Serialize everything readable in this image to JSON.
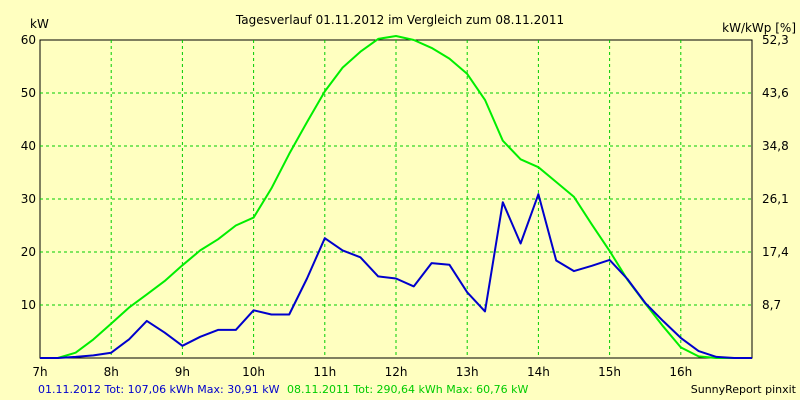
{
  "chart_data": {
    "type": "line",
    "title": "Tagesverlauf 01.11.2012 im Vergleich zum 08.11.2011",
    "ylabel_left": "kW",
    "ylabel_right": "kW/kWp [%]",
    "ylim": [
      0,
      60
    ],
    "grid": true,
    "x_ticks": [
      "7h",
      "8h",
      "9h",
      "10h",
      "11h",
      "12h",
      "13h",
      "14h",
      "15h",
      "16h"
    ],
    "y_ticks_left": [
      "10",
      "20",
      "30",
      "40",
      "50",
      "60"
    ],
    "y_ticks_right": [
      "8,7",
      "17,4",
      "26,1",
      "34,8",
      "43,6",
      "52,3"
    ],
    "series": [
      {
        "name": "01.11.2012",
        "color": "#0000cc",
        "points": [
          [
            7.0,
            0
          ],
          [
            7.25,
            0
          ],
          [
            7.5,
            0.2
          ],
          [
            7.75,
            0.5
          ],
          [
            8.0,
            1
          ],
          [
            8.25,
            3.5
          ],
          [
            8.5,
            7
          ],
          [
            8.75,
            4.8
          ],
          [
            9.0,
            2.3
          ],
          [
            9.25,
            4
          ],
          [
            9.5,
            5.3
          ],
          [
            9.75,
            5.3
          ],
          [
            10.0,
            9
          ],
          [
            10.25,
            8.2
          ],
          [
            10.5,
            8.2
          ],
          [
            10.75,
            15
          ],
          [
            11.0,
            22.6
          ],
          [
            11.25,
            20.3
          ],
          [
            11.5,
            19
          ],
          [
            11.75,
            15.4
          ],
          [
            12.0,
            15
          ],
          [
            12.25,
            13.5
          ],
          [
            12.5,
            17.9
          ],
          [
            12.75,
            17.6
          ],
          [
            13.0,
            12.4
          ],
          [
            13.25,
            8.8
          ],
          [
            13.5,
            29.4
          ],
          [
            13.75,
            21.6
          ],
          [
            14.0,
            30.9
          ],
          [
            14.25,
            18.4
          ],
          [
            14.5,
            16.4
          ],
          [
            14.75,
            17.4
          ],
          [
            15.0,
            18.5
          ],
          [
            15.25,
            14.9
          ],
          [
            15.5,
            10.4
          ],
          [
            15.75,
            7
          ],
          [
            16.0,
            3.8
          ],
          [
            16.25,
            1.3
          ],
          [
            16.5,
            0.2
          ],
          [
            16.75,
            0
          ],
          [
            17.0,
            0
          ]
        ]
      },
      {
        "name": "08.11.2011",
        "color": "#00ee00",
        "points": [
          [
            7.0,
            0
          ],
          [
            7.25,
            0
          ],
          [
            7.5,
            1
          ],
          [
            7.75,
            3.5
          ],
          [
            8.0,
            6.5
          ],
          [
            8.25,
            9.5
          ],
          [
            8.5,
            12
          ],
          [
            8.75,
            14.5
          ],
          [
            9.0,
            17.5
          ],
          [
            9.25,
            20.3
          ],
          [
            9.5,
            22.4
          ],
          [
            9.75,
            25
          ],
          [
            10.0,
            26.5
          ],
          [
            10.25,
            32
          ],
          [
            10.5,
            38.5
          ],
          [
            10.75,
            44.5
          ],
          [
            11.0,
            50.3
          ],
          [
            11.25,
            54.8
          ],
          [
            11.5,
            57.8
          ],
          [
            11.75,
            60.2
          ],
          [
            12.0,
            60.76
          ],
          [
            12.25,
            60
          ],
          [
            12.5,
            58.5
          ],
          [
            12.75,
            56.5
          ],
          [
            13.0,
            53.6
          ],
          [
            13.25,
            48.7
          ],
          [
            13.5,
            41
          ],
          [
            13.75,
            37.5
          ],
          [
            14.0,
            36
          ],
          [
            14.25,
            33.2
          ],
          [
            14.5,
            30.4
          ],
          [
            14.75,
            25.2
          ],
          [
            15.0,
            20.2
          ],
          [
            15.25,
            14.8
          ],
          [
            15.5,
            10.3
          ],
          [
            15.75,
            6
          ],
          [
            16.0,
            2
          ],
          [
            16.25,
            0.3
          ],
          [
            16.5,
            0
          ],
          [
            16.75,
            0
          ],
          [
            17.0,
            0
          ]
        ]
      }
    ]
  },
  "footer": {
    "series1_text": "01.11.2012 Tot: 107,06 kWh Max: 30,91 kW",
    "series1_color": "#0000cc",
    "series2_text": "08.11.2011 Tot: 290,64 kWh Max: 60,76 kW",
    "series2_color": "#00cc00",
    "credit": "SunnyReport pinxit"
  }
}
